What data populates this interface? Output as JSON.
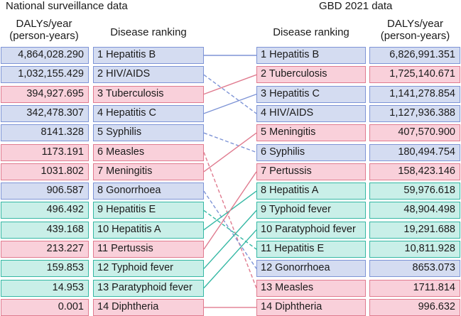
{
  "headers": {
    "left_title": "National surveillance data",
    "right_title": "GBD 2021 data",
    "left_dalys_line1": "DALYs/year",
    "left_dalys_line2": "(person-years)",
    "left_ranking": "Disease ranking",
    "right_ranking": "Disease ranking",
    "right_dalys_line1": "DALYs/year",
    "right_dalys_line2": "(person-years)"
  },
  "colors": {
    "blue": "#7e94d6",
    "pink": "#e07b8f",
    "teal": "#35b8a4"
  },
  "national": [
    {
      "rank": "1",
      "name": "Hepatitis B",
      "dalys": "4,864,028.290",
      "group": "blue"
    },
    {
      "rank": "2",
      "name": "HIV/AIDS",
      "dalys": "1,032,155.429",
      "group": "blue"
    },
    {
      "rank": "3",
      "name": "Tuberculosis",
      "dalys": "394,927.695",
      "group": "pink"
    },
    {
      "rank": "4",
      "name": "Hepatitis C",
      "dalys": "342,478.307",
      "group": "blue"
    },
    {
      "rank": "5",
      "name": "Syphilis",
      "dalys": "8141.328",
      "group": "blue"
    },
    {
      "rank": "6",
      "name": "Measles",
      "dalys": "1173.191",
      "group": "pink"
    },
    {
      "rank": "7",
      "name": "Meningitis",
      "dalys": "1031.802",
      "group": "pink"
    },
    {
      "rank": "8",
      "name": "Gonorrhoea",
      "dalys": "906.587",
      "group": "blue"
    },
    {
      "rank": "9",
      "name": "Hepatitis E",
      "dalys": "496.492",
      "group": "teal"
    },
    {
      "rank": "10",
      "name": "Hepatitis A",
      "dalys": "439.168",
      "group": "teal"
    },
    {
      "rank": "11",
      "name": "Pertussis",
      "dalys": "213.227",
      "group": "pink"
    },
    {
      "rank": "12",
      "name": "Typhoid fever",
      "dalys": "159.853",
      "group": "teal"
    },
    {
      "rank": "13",
      "name": "Paratyphoid fever",
      "dalys": "14.953",
      "group": "teal"
    },
    {
      "rank": "14",
      "name": "Diphtheria",
      "dalys": "0.001",
      "group": "pink"
    }
  ],
  "gbd": [
    {
      "rank": "1",
      "name": "Hepatitis B",
      "dalys": "6,826,991.351",
      "group": "blue"
    },
    {
      "rank": "2",
      "name": "Tuberculosis",
      "dalys": "1,725,140.671",
      "group": "pink"
    },
    {
      "rank": "3",
      "name": "Hepatitis C",
      "dalys": "1,141,278.854",
      "group": "blue"
    },
    {
      "rank": "4",
      "name": "HIV/AIDS",
      "dalys": "1,127,936.388",
      "group": "blue"
    },
    {
      "rank": "5",
      "name": "Meningitis",
      "dalys": "407,570.900",
      "group": "pink"
    },
    {
      "rank": "6",
      "name": "Syphilis",
      "dalys": "180,494.754",
      "group": "blue"
    },
    {
      "rank": "7",
      "name": "Pertussis",
      "dalys": "158,423.146",
      "group": "pink"
    },
    {
      "rank": "8",
      "name": "Hepatitis A",
      "dalys": "59,976.618",
      "group": "teal"
    },
    {
      "rank": "9",
      "name": "Typhoid fever",
      "dalys": "48,904.498",
      "group": "teal"
    },
    {
      "rank": "10",
      "name": "Paratyphoid fever",
      "dalys": "19,291.688",
      "group": "teal"
    },
    {
      "rank": "11",
      "name": "Hepatitis E",
      "dalys": "10,811.928",
      "group": "teal"
    },
    {
      "rank": "12",
      "name": "Gonorrhoea",
      "dalys": "8653.073",
      "group": "blue"
    },
    {
      "rank": "13",
      "name": "Measles",
      "dalys": "1711.814",
      "group": "pink"
    },
    {
      "rank": "14",
      "name": "Diphtheria",
      "dalys": "996.632",
      "group": "pink"
    }
  ],
  "links": [
    {
      "from": 1,
      "to": 1,
      "style": "solid"
    },
    {
      "from": 2,
      "to": 4,
      "style": "dashed"
    },
    {
      "from": 3,
      "to": 2,
      "style": "solid"
    },
    {
      "from": 4,
      "to": 3,
      "style": "solid"
    },
    {
      "from": 5,
      "to": 6,
      "style": "dashed"
    },
    {
      "from": 6,
      "to": 13,
      "style": "dashed"
    },
    {
      "from": 7,
      "to": 5,
      "style": "solid"
    },
    {
      "from": 8,
      "to": 12,
      "style": "dashed"
    },
    {
      "from": 9,
      "to": 11,
      "style": "dashed"
    },
    {
      "from": 10,
      "to": 8,
      "style": "solid"
    },
    {
      "from": 11,
      "to": 7,
      "style": "solid"
    },
    {
      "from": 12,
      "to": 9,
      "style": "solid"
    },
    {
      "from": 13,
      "to": 10,
      "style": "solid"
    },
    {
      "from": 14,
      "to": 14,
      "style": "solid"
    }
  ]
}
